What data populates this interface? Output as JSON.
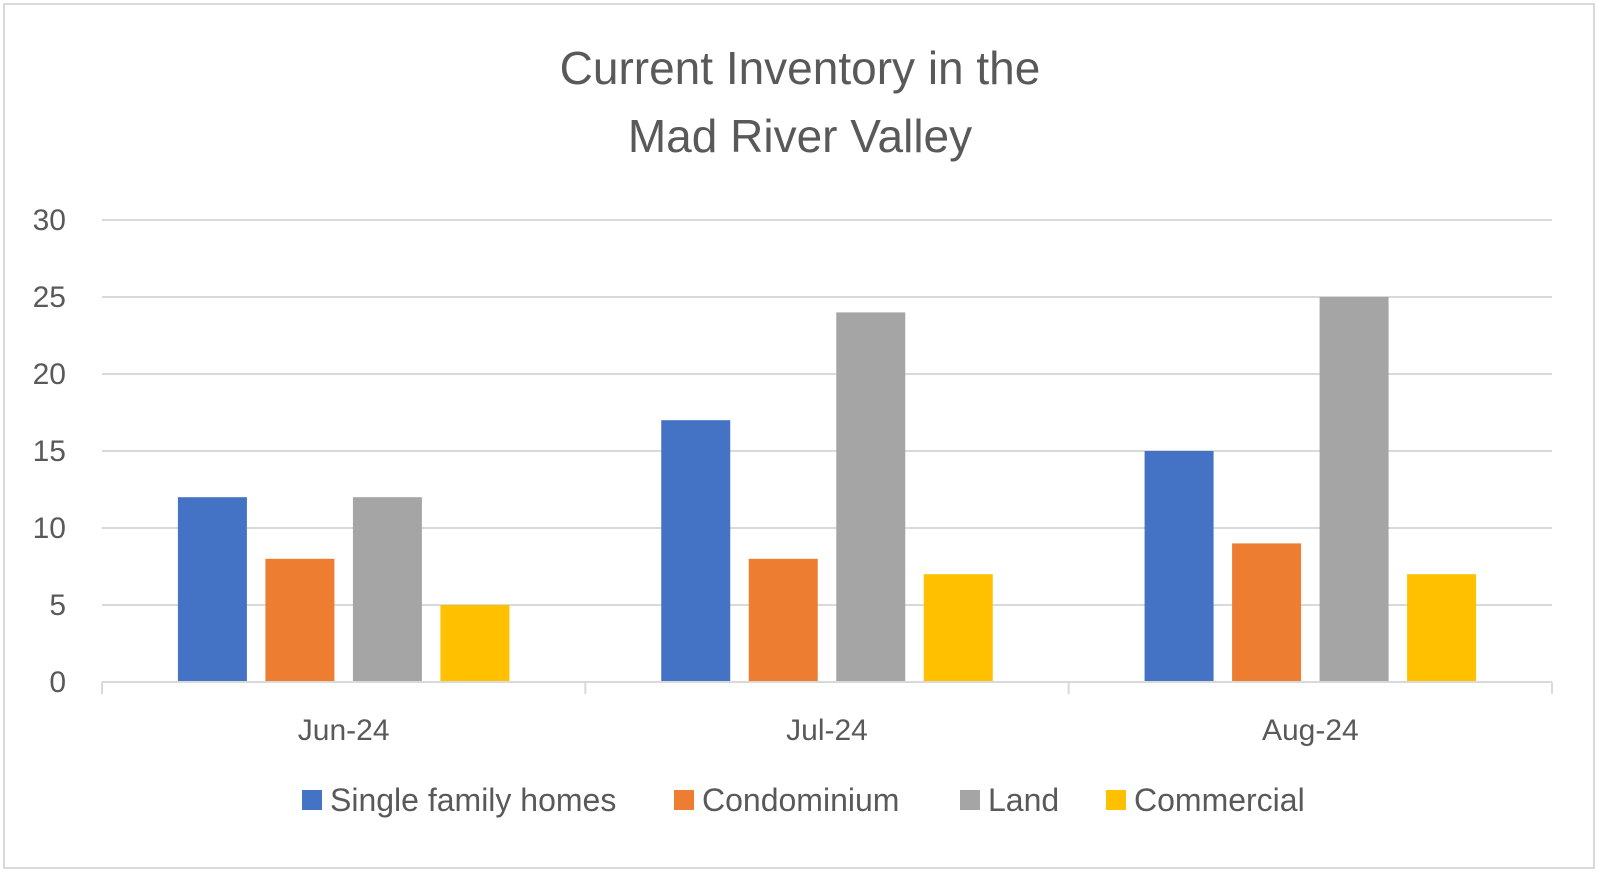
{
  "chart_data": {
    "type": "bar",
    "title": "Current Inventory in the Mad River Valley",
    "title_lines": [
      "Current Inventory in the",
      "Mad River Valley"
    ],
    "xlabel": "",
    "ylabel": "",
    "categories": [
      "Jun-24",
      "Jul-24",
      "Aug-24"
    ],
    "series": [
      {
        "name": "Single family homes",
        "color": "#4472C4",
        "values": [
          12,
          17,
          15
        ]
      },
      {
        "name": "Condominium",
        "color": "#ED7D31",
        "values": [
          8,
          8,
          9
        ]
      },
      {
        "name": "Land",
        "color": "#A5A5A5",
        "values": [
          12,
          24,
          25
        ]
      },
      {
        "name": "Commercial",
        "color": "#FFC000",
        "values": [
          5,
          7,
          7
        ]
      }
    ],
    "ylim": [
      0,
      30
    ],
    "yticks": [
      0,
      5,
      10,
      15,
      20,
      25,
      30
    ],
    "ytick_labels": [
      "0",
      "5",
      "10",
      "15",
      "20",
      "25",
      "30"
    ],
    "grid": true,
    "legend_position": "bottom"
  },
  "colors": {
    "gridline": "#d9d9d9",
    "axis": "#d9d9d9",
    "text": "#595959",
    "border": "#d9d9d9"
  }
}
